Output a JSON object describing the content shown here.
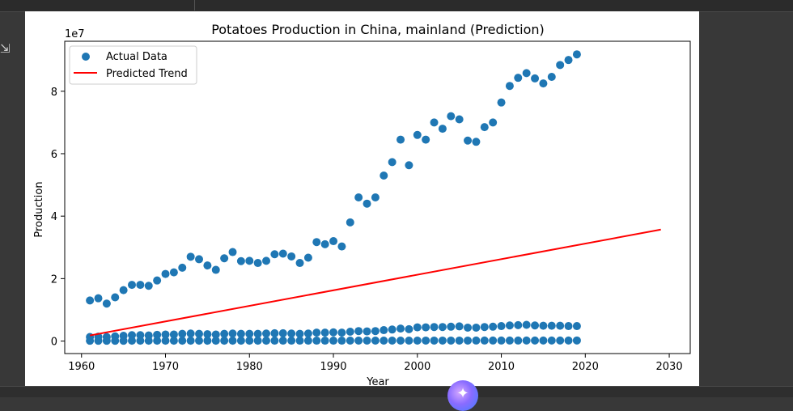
{
  "ui": {
    "sidebar_icon": "expand-output-icon",
    "fab_icon": "sparkle-icon",
    "fab_glyph": "✦"
  },
  "chart_data": {
    "type": "scatter",
    "title": "Potatoes Production in China, mainland (Prediction)",
    "xlabel": "Year",
    "ylabel": "Production",
    "y_offset_label": "1e7",
    "xlim": [
      1958,
      2032.5
    ],
    "ylim": [
      -4000000,
      96000000
    ],
    "y_scale_factor": 10000000,
    "x_ticks": [
      1960,
      1970,
      1980,
      1990,
      2000,
      2010,
      2020,
      2030
    ],
    "y_ticks": [
      0,
      20000000,
      40000000,
      60000000,
      80000000
    ],
    "y_tick_labels": [
      "0",
      "2",
      "4",
      "6",
      "8"
    ],
    "grid": false,
    "legend": {
      "placement": "top-left",
      "entries": [
        "Actual Data",
        "Predicted Trend"
      ]
    },
    "colors": {
      "scatter": "#1f77b4",
      "trend": "#ff0000"
    },
    "series": [
      {
        "name": "Actual Data",
        "kind": "scatter",
        "x": [
          1961,
          1962,
          1963,
          1964,
          1965,
          1966,
          1967,
          1968,
          1969,
          1970,
          1971,
          1972,
          1973,
          1974,
          1975,
          1976,
          1977,
          1978,
          1979,
          1980,
          1981,
          1982,
          1983,
          1984,
          1985,
          1986,
          1987,
          1988,
          1989,
          1990,
          1991,
          1992,
          1993,
          1994,
          1995,
          1996,
          1997,
          1998,
          1999,
          2000,
          2001,
          2002,
          2003,
          2004,
          2005,
          2006,
          2007,
          2008,
          2009,
          2010,
          2011,
          2012,
          2013,
          2014,
          2015,
          2016,
          2017,
          2018,
          2019
        ],
        "y": [
          13000000,
          13700000,
          12000000,
          14000000,
          16300000,
          18000000,
          18000000,
          17700000,
          19400000,
          21500000,
          22000000,
          23500000,
          27000000,
          26200000,
          24200000,
          22800000,
          26500000,
          28500000,
          25600000,
          25700000,
          25000000,
          25700000,
          27800000,
          28000000,
          27100000,
          25000000,
          26700000,
          31700000,
          31000000,
          32000000,
          30300000,
          38000000,
          46000000,
          44000000,
          46000000,
          53000000,
          57300000,
          64500000,
          56300000,
          66000000,
          64500000,
          70000000,
          68000000,
          72000000,
          71000000,
          64200000,
          63800000,
          68500000,
          70000000,
          76400000,
          81700000,
          84300000,
          85800000,
          84100000,
          82500000,
          84600000,
          88400000,
          90000000,
          91800000
        ]
      },
      {
        "name": "",
        "kind": "scatter",
        "x": [
          1961,
          1962,
          1963,
          1964,
          1965,
          1966,
          1967,
          1968,
          1969,
          1970,
          1971,
          1972,
          1973,
          1974,
          1975,
          1976,
          1977,
          1978,
          1979,
          1980,
          1981,
          1982,
          1983,
          1984,
          1985,
          1986,
          1987,
          1988,
          1989,
          1990,
          1991,
          1992,
          1993,
          1994,
          1995,
          1996,
          1997,
          1998,
          1999,
          2000,
          2001,
          2002,
          2003,
          2004,
          2005,
          2006,
          2007,
          2008,
          2009,
          2010,
          2011,
          2012,
          2013,
          2014,
          2015,
          2016,
          2017,
          2018,
          2019
        ],
        "y": [
          1300000,
          1400000,
          1300000,
          1500000,
          1700000,
          1900000,
          1900000,
          1800000,
          2000000,
          2100000,
          2100000,
          2300000,
          2400000,
          2300000,
          2200000,
          2100000,
          2300000,
          2400000,
          2300000,
          2300000,
          2300000,
          2400000,
          2500000,
          2500000,
          2400000,
          2300000,
          2400000,
          2700000,
          2700000,
          2800000,
          2700000,
          3000000,
          3200000,
          3100000,
          3200000,
          3500000,
          3700000,
          4000000,
          3800000,
          4400000,
          4400000,
          4500000,
          4500000,
          4600000,
          4700000,
          4300000,
          4300000,
          4500000,
          4600000,
          4800000,
          5000000,
          5100000,
          5200000,
          5000000,
          4900000,
          4900000,
          4900000,
          4800000,
          4800000
        ]
      },
      {
        "name": "",
        "kind": "scatter",
        "x": [
          1961,
          1962,
          1963,
          1964,
          1965,
          1966,
          1967,
          1968,
          1969,
          1970,
          1971,
          1972,
          1973,
          1974,
          1975,
          1976,
          1977,
          1978,
          1979,
          1980,
          1981,
          1982,
          1983,
          1984,
          1985,
          1986,
          1987,
          1988,
          1989,
          1990,
          1991,
          1992,
          1993,
          1994,
          1995,
          1996,
          1997,
          1998,
          1999,
          2000,
          2001,
          2002,
          2003,
          2004,
          2005,
          2006,
          2007,
          2008,
          2009,
          2010,
          2011,
          2012,
          2013,
          2014,
          2015,
          2016,
          2017,
          2018,
          2019
        ],
        "y": [
          100000,
          100000,
          100000,
          100000,
          100000,
          110000,
          110000,
          110000,
          110000,
          110000,
          110000,
          115000,
          120000,
          120000,
          120000,
          120000,
          125000,
          125000,
          125000,
          125000,
          125000,
          125000,
          130000,
          130000,
          130000,
          130000,
          130000,
          130000,
          135000,
          135000,
          135000,
          140000,
          140000,
          140000,
          145000,
          145000,
          145000,
          150000,
          150000,
          150000,
          155000,
          155000,
          155000,
          160000,
          160000,
          160000,
          165000,
          165000,
          165000,
          170000,
          170000,
          170000,
          175000,
          175000,
          175000,
          180000,
          180000,
          180000,
          185000
        ]
      },
      {
        "name": "Predicted Trend",
        "kind": "line",
        "x": [
          1961,
          2029
        ],
        "y": [
          1800000,
          35700000
        ]
      }
    ]
  }
}
